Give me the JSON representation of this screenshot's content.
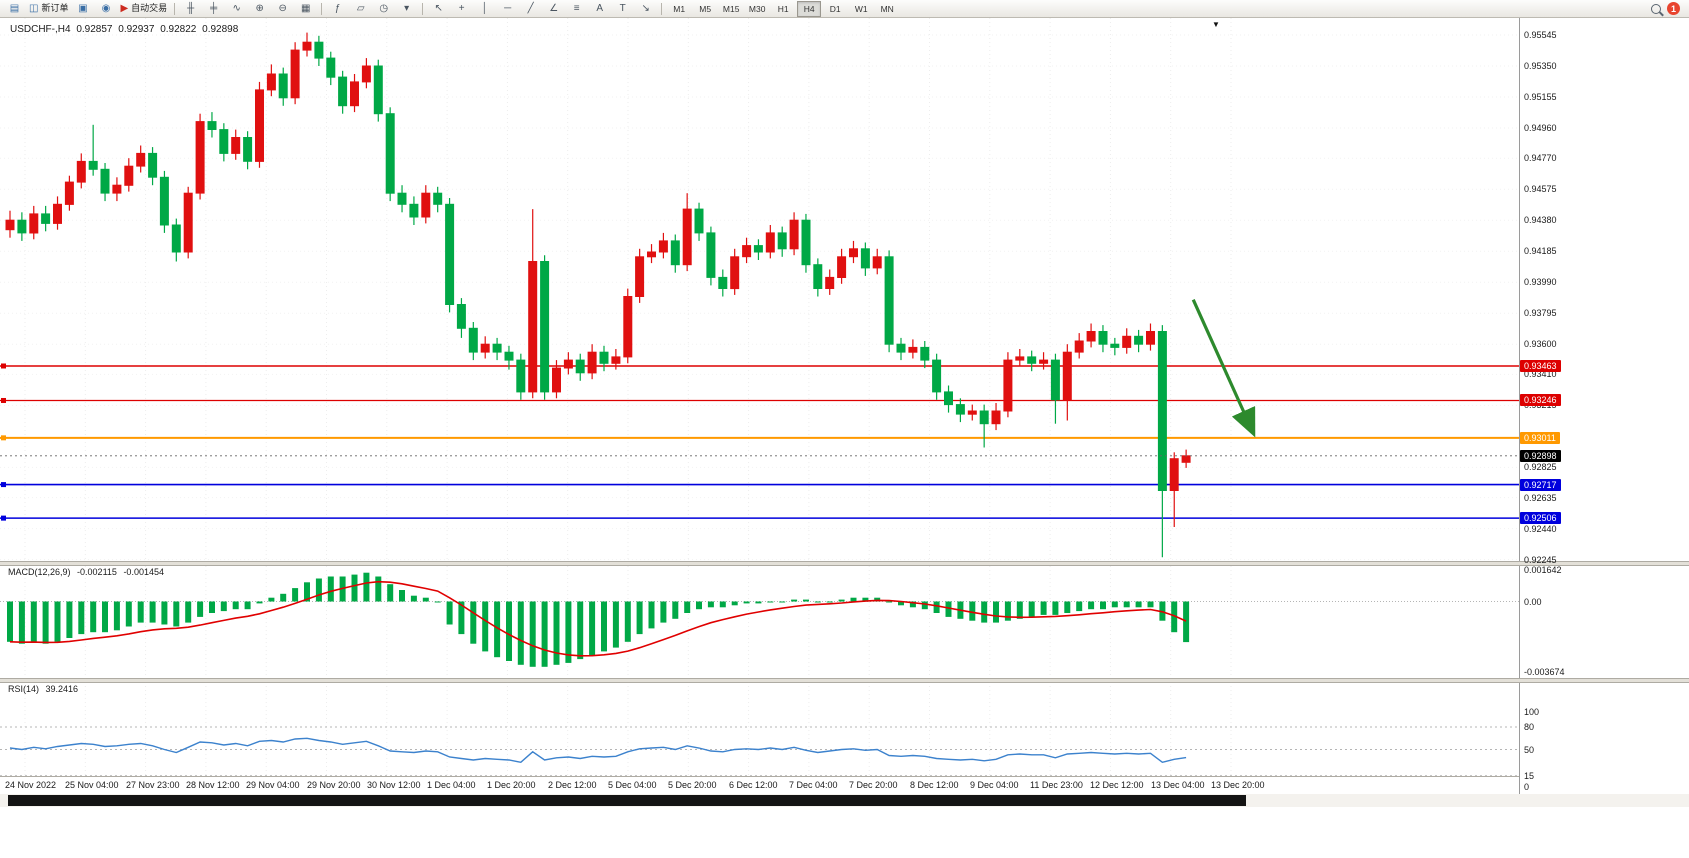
{
  "toolbar": {
    "badge_count": "1",
    "file_buttons": [
      {
        "name": "new-chart-button",
        "glyph": "▤",
        "color": "#3a6ea5"
      },
      {
        "name": "new-order-button",
        "glyph": "◫",
        "label": "新订单",
        "color": "#3a6ea5"
      },
      {
        "name": "profiles-button",
        "glyph": "▣",
        "color": "#3a6ea5"
      },
      {
        "name": "sound-alert-button",
        "glyph": "◉",
        "color": "#3a6ea5"
      },
      {
        "name": "autotrading-button",
        "glyph": "▶",
        "label": "自动交易",
        "color": "#cc2a1e"
      }
    ],
    "chart_buttons": [
      {
        "name": "bar-chart-button",
        "glyph": "╫"
      },
      {
        "name": "candlestick-button",
        "glyph": "╪"
      },
      {
        "name": "line-chart-button",
        "glyph": "∿"
      },
      {
        "name": "zoom-in-button",
        "glyph": "⊕"
      },
      {
        "name": "zoom-out-button",
        "glyph": "⊖"
      },
      {
        "name": "tile-windows-button",
        "glyph": "▦"
      }
    ],
    "window_buttons": [
      {
        "name": "indicators-button",
        "glyph": "ƒ"
      },
      {
        "name": "objects-list-button",
        "glyph": "▱"
      },
      {
        "name": "clock-button",
        "glyph": "◷"
      },
      {
        "name": "chart-settings-button",
        "glyph": "▾"
      }
    ],
    "draw_buttons": [
      {
        "name": "cursor-button",
        "glyph": "↖"
      },
      {
        "name": "crosshair-button",
        "glyph": "+"
      },
      {
        "name": "vertical-line-button",
        "glyph": "│"
      },
      {
        "name": "horizontal-line-button",
        "glyph": "─"
      },
      {
        "name": "trendline-button",
        "glyph": "╱"
      },
      {
        "name": "angle-line-button",
        "glyph": "∠"
      },
      {
        "name": "fibonacci-button",
        "glyph": "≡"
      },
      {
        "name": "text-button",
        "glyph": "A"
      },
      {
        "name": "label-button",
        "glyph": "T"
      },
      {
        "name": "arrows-button",
        "glyph": "↘"
      }
    ],
    "timeframes": [
      "M1",
      "M5",
      "M15",
      "M30",
      "H1",
      "H4",
      "D1",
      "W1",
      "MN"
    ],
    "active_timeframe": "H4"
  },
  "chart": {
    "title": {
      "symbol": "USDCHF-,H4",
      "open": "0.92857",
      "high": "0.92937",
      "low": "0.92822",
      "close": "0.92898"
    },
    "price_axis": [
      "0.95545",
      "0.95350",
      "0.95155",
      "0.94960",
      "0.94770",
      "0.94575",
      "0.94380",
      "0.94185",
      "0.93990",
      "0.93795",
      "0.93600",
      "0.93410",
      "0.93215",
      "0.92825",
      "0.92635",
      "0.92440",
      "0.92245"
    ],
    "time_axis": [
      "24 Nov 2022",
      "25 Nov 04:00",
      "27 Nov 23:00",
      "28 Nov 12:00",
      "29 Nov 04:00",
      "29 Nov 20:00",
      "30 Nov 12:00",
      "1 Dec 04:00",
      "1 Dec 20:00",
      "2 Dec 12:00",
      "5 Dec 04:00",
      "5 Dec 20:00",
      "6 Dec 12:00",
      "7 Dec 04:00",
      "7 Dec 20:00",
      "8 Dec 12:00",
      "9 Dec 04:00",
      "11 Dec 23:00",
      "12 Dec 12:00",
      "13 Dec 04:00",
      "13 Dec 20:00"
    ]
  },
  "macd": {
    "name": "MACD(12,26,9)",
    "main_value": "-0.002115",
    "signal_value": "-0.001454",
    "axis": {
      "labels": [
        "0.001642",
        "0.00",
        "-0.003674"
      ],
      "values": [
        0.001642,
        0,
        -0.003674
      ]
    }
  },
  "rsi": {
    "name": "RSI(14)",
    "value": "39.2416",
    "axis": {
      "labels": [
        "100",
        "80",
        "50",
        "15",
        "0"
      ],
      "values": [
        100,
        80,
        50,
        15,
        0
      ]
    },
    "levels": [
      80,
      50,
      15
    ]
  },
  "chart_data": {
    "type": "candlestick",
    "symbol": "USDCHF",
    "timeframe": "H4",
    "up_color": "#e01010",
    "down_color": "#00a846",
    "price_range": [
      0.9223,
      0.95652
    ],
    "current_price": {
      "price": 0.92898,
      "label": "0.92898",
      "color": "#000000"
    },
    "hlines": [
      {
        "price": 0.93463,
        "label": "0.93463",
        "color": "#dd0000",
        "width": 1.4
      },
      {
        "price": 0.93246,
        "label": "0.93246",
        "color": "#dd0000",
        "width": 1.2
      },
      {
        "price": 0.93011,
        "label": "0.93011",
        "color": "#ff9900",
        "width": 2
      },
      {
        "price": 0.92717,
        "label": "0.92717",
        "color": "#0000dd",
        "width": 1.6
      },
      {
        "price": 0.92506,
        "label": "0.92506",
        "color": "#0000dd",
        "width": 1.6
      }
    ],
    "arrow": {
      "from_bar": 99.6,
      "from_price": 0.9388,
      "to_bar": 104.6,
      "to_price": 0.9305,
      "color": "#2d8a2d"
    },
    "candles": [
      [
        0.9432,
        0.9444,
        0.9427,
        0.9438
      ],
      [
        0.9438,
        0.9443,
        0.9425,
        0.943
      ],
      [
        0.943,
        0.9447,
        0.9426,
        0.9442
      ],
      [
        0.9442,
        0.9447,
        0.9431,
        0.9436
      ],
      [
        0.9436,
        0.9453,
        0.9432,
        0.9448
      ],
      [
        0.9448,
        0.9466,
        0.9444,
        0.9462
      ],
      [
        0.9462,
        0.948,
        0.9458,
        0.9475
      ],
      [
        0.9475,
        0.9498,
        0.9466,
        0.947
      ],
      [
        0.947,
        0.9474,
        0.945,
        0.9455
      ],
      [
        0.9455,
        0.9465,
        0.945,
        0.946
      ],
      [
        0.946,
        0.9477,
        0.9456,
        0.9472
      ],
      [
        0.9472,
        0.9485,
        0.9468,
        0.948
      ],
      [
        0.948,
        0.9484,
        0.946,
        0.9465
      ],
      [
        0.9465,
        0.9469,
        0.943,
        0.9435
      ],
      [
        0.9435,
        0.9439,
        0.9412,
        0.9418
      ],
      [
        0.9418,
        0.9459,
        0.9414,
        0.9455
      ],
      [
        0.9455,
        0.9505,
        0.9451,
        0.95
      ],
      [
        0.95,
        0.9506,
        0.949,
        0.9495
      ],
      [
        0.9495,
        0.9499,
        0.9475,
        0.948
      ],
      [
        0.948,
        0.9495,
        0.9476,
        0.949
      ],
      [
        0.949,
        0.9494,
        0.947,
        0.9475
      ],
      [
        0.9475,
        0.9525,
        0.9471,
        0.952
      ],
      [
        0.952,
        0.9536,
        0.9516,
        0.953
      ],
      [
        0.953,
        0.9534,
        0.951,
        0.9515
      ],
      [
        0.9515,
        0.955,
        0.9511,
        0.9545
      ],
      [
        0.9545,
        0.9556,
        0.9541,
        0.955
      ],
      [
        0.955,
        0.9554,
        0.9535,
        0.954
      ],
      [
        0.954,
        0.9544,
        0.9523,
        0.9528
      ],
      [
        0.9528,
        0.9532,
        0.9505,
        0.951
      ],
      [
        0.951,
        0.953,
        0.9506,
        0.9525
      ],
      [
        0.9525,
        0.954,
        0.9521,
        0.9535
      ],
      [
        0.9535,
        0.9539,
        0.95,
        0.9505
      ],
      [
        0.9505,
        0.9509,
        0.945,
        0.9455
      ],
      [
        0.9455,
        0.946,
        0.9443,
        0.9448
      ],
      [
        0.9448,
        0.9453,
        0.9435,
        0.944
      ],
      [
        0.944,
        0.946,
        0.9436,
        0.9455
      ],
      [
        0.9455,
        0.9459,
        0.9443,
        0.9448
      ],
      [
        0.9448,
        0.9452,
        0.938,
        0.9385
      ],
      [
        0.9385,
        0.9389,
        0.9364,
        0.937
      ],
      [
        0.937,
        0.9374,
        0.935,
        0.9355
      ],
      [
        0.9355,
        0.9365,
        0.9351,
        0.936
      ],
      [
        0.936,
        0.9364,
        0.935,
        0.9355
      ],
      [
        0.9355,
        0.9359,
        0.9344,
        0.935
      ],
      [
        0.935,
        0.9354,
        0.9325,
        0.933
      ],
      [
        0.933,
        0.9445,
        0.9326,
        0.9412
      ],
      [
        0.9412,
        0.9416,
        0.9325,
        0.933
      ],
      [
        0.933,
        0.935,
        0.9326,
        0.9345
      ],
      [
        0.9345,
        0.9355,
        0.9341,
        0.935
      ],
      [
        0.935,
        0.9354,
        0.9337,
        0.9342
      ],
      [
        0.9342,
        0.936,
        0.9338,
        0.9355
      ],
      [
        0.9355,
        0.9359,
        0.9343,
        0.9348
      ],
      [
        0.9348,
        0.9357,
        0.9344,
        0.9352
      ],
      [
        0.9352,
        0.9395,
        0.9348,
        0.939
      ],
      [
        0.939,
        0.942,
        0.9386,
        0.9415
      ],
      [
        0.9415,
        0.9423,
        0.9411,
        0.9418
      ],
      [
        0.9418,
        0.943,
        0.9414,
        0.9425
      ],
      [
        0.9425,
        0.9429,
        0.9405,
        0.941
      ],
      [
        0.941,
        0.9455,
        0.9406,
        0.9445
      ],
      [
        0.9445,
        0.9449,
        0.9425,
        0.943
      ],
      [
        0.943,
        0.9434,
        0.9397,
        0.9402
      ],
      [
        0.9402,
        0.9407,
        0.939,
        0.9395
      ],
      [
        0.9395,
        0.942,
        0.9391,
        0.9415
      ],
      [
        0.9415,
        0.9427,
        0.9411,
        0.9422
      ],
      [
        0.9422,
        0.9426,
        0.9413,
        0.9418
      ],
      [
        0.9418,
        0.9435,
        0.9414,
        0.943
      ],
      [
        0.943,
        0.9434,
        0.9415,
        0.942
      ],
      [
        0.942,
        0.9443,
        0.9416,
        0.9438
      ],
      [
        0.9438,
        0.9442,
        0.9405,
        0.941
      ],
      [
        0.941,
        0.9414,
        0.939,
        0.9395
      ],
      [
        0.9395,
        0.9407,
        0.9391,
        0.9402
      ],
      [
        0.9402,
        0.942,
        0.9398,
        0.9415
      ],
      [
        0.9415,
        0.9425,
        0.9411,
        0.942
      ],
      [
        0.942,
        0.9424,
        0.9403,
        0.9408
      ],
      [
        0.9408,
        0.942,
        0.9404,
        0.9415
      ],
      [
        0.9415,
        0.9419,
        0.9355,
        0.936
      ],
      [
        0.936,
        0.9364,
        0.935,
        0.9355
      ],
      [
        0.9355,
        0.9363,
        0.9351,
        0.9358
      ],
      [
        0.9358,
        0.9362,
        0.9345,
        0.935
      ],
      [
        0.935,
        0.9354,
        0.9325,
        0.933
      ],
      [
        0.933,
        0.9334,
        0.9317,
        0.9322
      ],
      [
        0.9322,
        0.9326,
        0.9311,
        0.9316
      ],
      [
        0.9316,
        0.9322,
        0.9312,
        0.9318
      ],
      [
        0.9318,
        0.9322,
        0.9295,
        0.931
      ],
      [
        0.931,
        0.9323,
        0.9306,
        0.9318
      ],
      [
        0.9318,
        0.9355,
        0.9314,
        0.935
      ],
      [
        0.935,
        0.9357,
        0.9346,
        0.9352
      ],
      [
        0.9352,
        0.9356,
        0.9343,
        0.9348
      ],
      [
        0.9348,
        0.9355,
        0.9344,
        0.935
      ],
      [
        0.935,
        0.9354,
        0.931,
        0.9325
      ],
      [
        0.9325,
        0.936,
        0.9312,
        0.9355
      ],
      [
        0.9355,
        0.9367,
        0.9351,
        0.9362
      ],
      [
        0.9362,
        0.9373,
        0.9358,
        0.9368
      ],
      [
        0.9368,
        0.9372,
        0.9355,
        0.936
      ],
      [
        0.936,
        0.9364,
        0.9353,
        0.9358
      ],
      [
        0.9358,
        0.937,
        0.9354,
        0.9365
      ],
      [
        0.9365,
        0.9369,
        0.9355,
        0.936
      ],
      [
        0.936,
        0.9373,
        0.9356,
        0.9368
      ],
      [
        0.9368,
        0.9372,
        0.9226,
        0.9268
      ],
      [
        0.9268,
        0.9292,
        0.9245,
        0.9288
      ],
      [
        0.92857,
        0.92937,
        0.92822,
        0.92898
      ]
    ],
    "macd_histogram": [
      -0.0021,
      -0.0022,
      -0.0021,
      -0.0022,
      -0.0021,
      -0.0019,
      -0.0017,
      -0.0016,
      -0.0016,
      -0.0015,
      -0.0013,
      -0.0011,
      -0.0011,
      -0.0012,
      -0.0013,
      -0.0011,
      -0.0008,
      -0.0006,
      -0.0005,
      -0.0004,
      -0.0004,
      -0.0001,
      0.0002,
      0.0004,
      0.0007,
      0.001,
      0.0012,
      0.0013,
      0.0013,
      0.0014,
      0.0015,
      0.0013,
      0.0009,
      0.0006,
      0.0003,
      0.0002,
      0.0,
      -0.0012,
      -0.0017,
      -0.0022,
      -0.0026,
      -0.0029,
      -0.0031,
      -0.0033,
      -0.0034,
      -0.0034,
      -0.0033,
      -0.0032,
      -0.003,
      -0.0028,
      -0.0026,
      -0.0024,
      -0.0021,
      -0.0017,
      -0.0014,
      -0.0011,
      -0.0009,
      -0.0006,
      -0.0004,
      -0.0003,
      -0.0003,
      -0.0002,
      -0.0001,
      -0.0001,
      0.0,
      0.0,
      0.0001,
      0.0001,
      0.0,
      0.0,
      0.0001,
      0.0002,
      0.0002,
      0.0002,
      0.0,
      -0.0002,
      -0.0003,
      -0.0004,
      -0.0006,
      -0.0008,
      -0.0009,
      -0.001,
      -0.0011,
      -0.0011,
      -0.001,
      -0.0009,
      -0.0008,
      -0.0007,
      -0.0007,
      -0.0006,
      -0.0005,
      -0.0004,
      -0.0004,
      -0.0003,
      -0.0003,
      -0.0003,
      -0.0003,
      -0.001,
      -0.0016,
      -0.002115
    ],
    "rsi_values": [
      52,
      50,
      53,
      51,
      54,
      56,
      58,
      57,
      54,
      55,
      57,
      58,
      55,
      50,
      46,
      53,
      60,
      59,
      56,
      58,
      55,
      61,
      62,
      60,
      64,
      65,
      62,
      60,
      57,
      59,
      61,
      55,
      48,
      47,
      46,
      48,
      47,
      40,
      38,
      36,
      38,
      37,
      36,
      33,
      47,
      36,
      39,
      40,
      38,
      41,
      40,
      41,
      47,
      51,
      52,
      53,
      50,
      55,
      52,
      48,
      47,
      50,
      51,
      50,
      52,
      50,
      53,
      49,
      46,
      48,
      50,
      51,
      49,
      50,
      42,
      41,
      42,
      41,
      38,
      37,
      36,
      37,
      35,
      37,
      43,
      44,
      43,
      43,
      39,
      44,
      45,
      46,
      45,
      44,
      45,
      44,
      45,
      33,
      37,
      39.2416
    ],
    "macd_colors": {
      "histogram": "#00a846",
      "signal": "#e00000"
    },
    "rsi_color": "#3c82cd"
  }
}
